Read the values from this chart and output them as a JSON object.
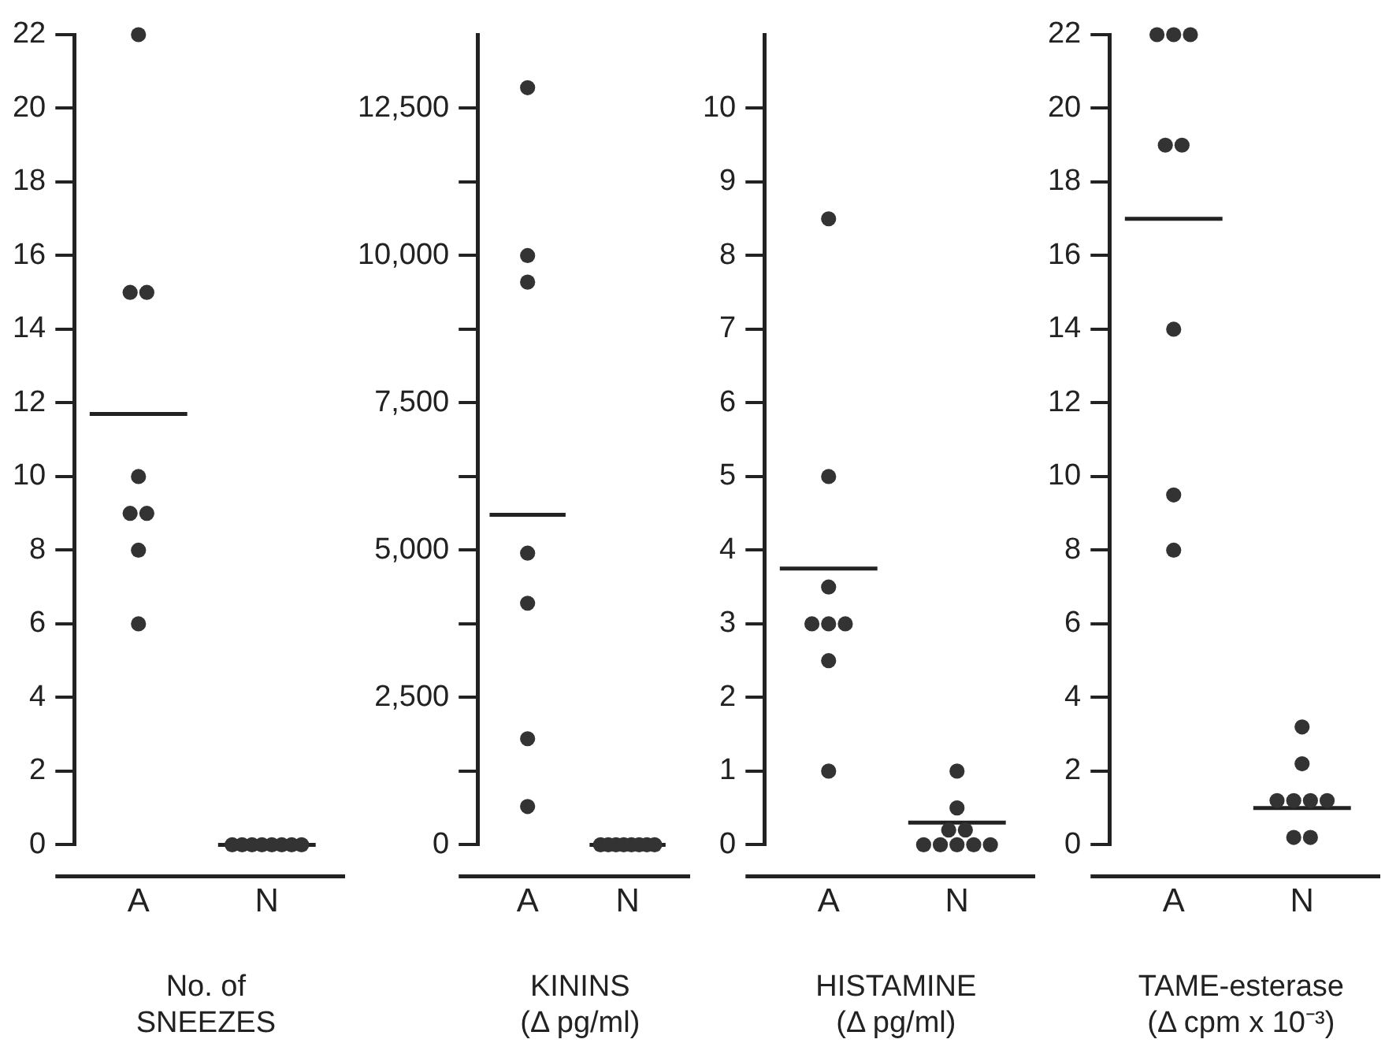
{
  "chart_data": [
    {
      "type": "scatter",
      "xlabel": "No. of\nSNEEZES",
      "categories": [
        "A",
        "N"
      ],
      "ylim": [
        0,
        22
      ],
      "yticks": [
        0,
        2,
        4,
        6,
        8,
        10,
        12,
        14,
        16,
        18,
        20,
        22
      ],
      "grid": false,
      "legend": false,
      "series": [
        {
          "type": "scatter",
          "marker": "circle",
          "color": "#333333",
          "x": [
            "A",
            "A",
            "A",
            "A",
            "A",
            "A",
            "A",
            "A",
            "N",
            "N",
            "N",
            "N",
            "N",
            "N",
            "N",
            "N"
          ],
          "values": [
            22,
            15,
            15,
            10,
            9,
            9,
            8,
            6,
            0,
            0,
            0,
            0,
            0,
            0,
            0,
            0
          ]
        }
      ],
      "ref_lines": [
        {
          "axis": "y",
          "value": 11.7,
          "color": "#222222"
        },
        {
          "axis": "y",
          "value": 0,
          "color": "#222222"
        }
      ]
    },
    {
      "type": "scatter",
      "xlabel": "KININS\n(Δ pg/ml)",
      "categories": [
        "A",
        "N"
      ],
      "ylim": [
        0,
        13750
      ],
      "yticks": [
        {
          "value": 0,
          "label": "0"
        },
        {
          "value": 1250,
          "label": null
        },
        {
          "value": 2500,
          "label": "2,500"
        },
        {
          "value": 3750,
          "label": null
        },
        {
          "value": 5000,
          "label": "5,000"
        },
        {
          "value": 6250,
          "label": null
        },
        {
          "value": 7500,
          "label": "7,500"
        },
        {
          "value": 8750,
          "label": null
        },
        {
          "value": 10000,
          "label": "10,000"
        },
        {
          "value": 11250,
          "label": null
        },
        {
          "value": 12500,
          "label": "12,500"
        }
      ],
      "grid": false,
      "legend": false,
      "series": [
        {
          "type": "scatter",
          "marker": "circle",
          "color": "#333333",
          "x": [
            "A",
            "A",
            "A",
            "A",
            "A",
            "A",
            "A",
            "N",
            "N",
            "N",
            "N",
            "N",
            "N",
            "N",
            "N"
          ],
          "values": [
            12850,
            10000,
            9550,
            4950,
            4100,
            1800,
            650,
            0,
            0,
            0,
            0,
            0,
            0,
            0,
            0
          ]
        }
      ],
      "ref_lines": [
        {
          "axis": "y",
          "value": 5600,
          "color": "#222222"
        },
        {
          "axis": "y",
          "value": 0,
          "color": "#222222"
        }
      ]
    },
    {
      "type": "scatter",
      "xlabel": "HISTAMINE\n(Δ pg/ml)",
      "categories": [
        "A",
        "N"
      ],
      "ylim": [
        0,
        11
      ],
      "yticks": [
        0,
        1,
        2,
        3,
        4,
        5,
        6,
        7,
        8,
        9,
        10
      ],
      "grid": false,
      "legend": false,
      "series": [
        {
          "type": "scatter",
          "marker": "circle",
          "color": "#333333",
          "x": [
            "A",
            "A",
            "A",
            "A",
            "A",
            "A",
            "A",
            "A",
            "N",
            "N",
            "N",
            "N",
            "N",
            "N",
            "N",
            "N",
            "N"
          ],
          "values": [
            8.5,
            5,
            3.5,
            3,
            3,
            3,
            2.5,
            1,
            1,
            0.5,
            0.2,
            0.2,
            0,
            0,
            0,
            0,
            0
          ]
        }
      ],
      "ref_lines": [
        {
          "axis": "y",
          "value": 3.75,
          "color": "#222222"
        },
        {
          "axis": "y",
          "value": 0.3,
          "color": "#222222"
        }
      ]
    },
    {
      "type": "scatter",
      "xlabel": "TAME-esterase\n(Δ cpm x 10⁻³)",
      "categories": [
        "A",
        "N"
      ],
      "ylim": [
        0,
        22
      ],
      "yticks": [
        0,
        2,
        4,
        6,
        8,
        10,
        12,
        14,
        16,
        18,
        20,
        22
      ],
      "grid": false,
      "legend": false,
      "series": [
        {
          "type": "scatter",
          "marker": "circle",
          "color": "#333333",
          "x": [
            "A",
            "A",
            "A",
            "A",
            "A",
            "A",
            "A",
            "A",
            "N",
            "N",
            "N",
            "N",
            "N",
            "N",
            "N",
            "N"
          ],
          "values": [
            22,
            22,
            22,
            19,
            19,
            14,
            9.5,
            8,
            3.2,
            2.2,
            1.2,
            1.2,
            1.2,
            1.2,
            0.2,
            0.2
          ]
        }
      ],
      "ref_lines": [
        {
          "axis": "y",
          "value": 17,
          "color": "#222222"
        },
        {
          "axis": "y",
          "value": 1,
          "color": "#222222"
        }
      ]
    }
  ]
}
